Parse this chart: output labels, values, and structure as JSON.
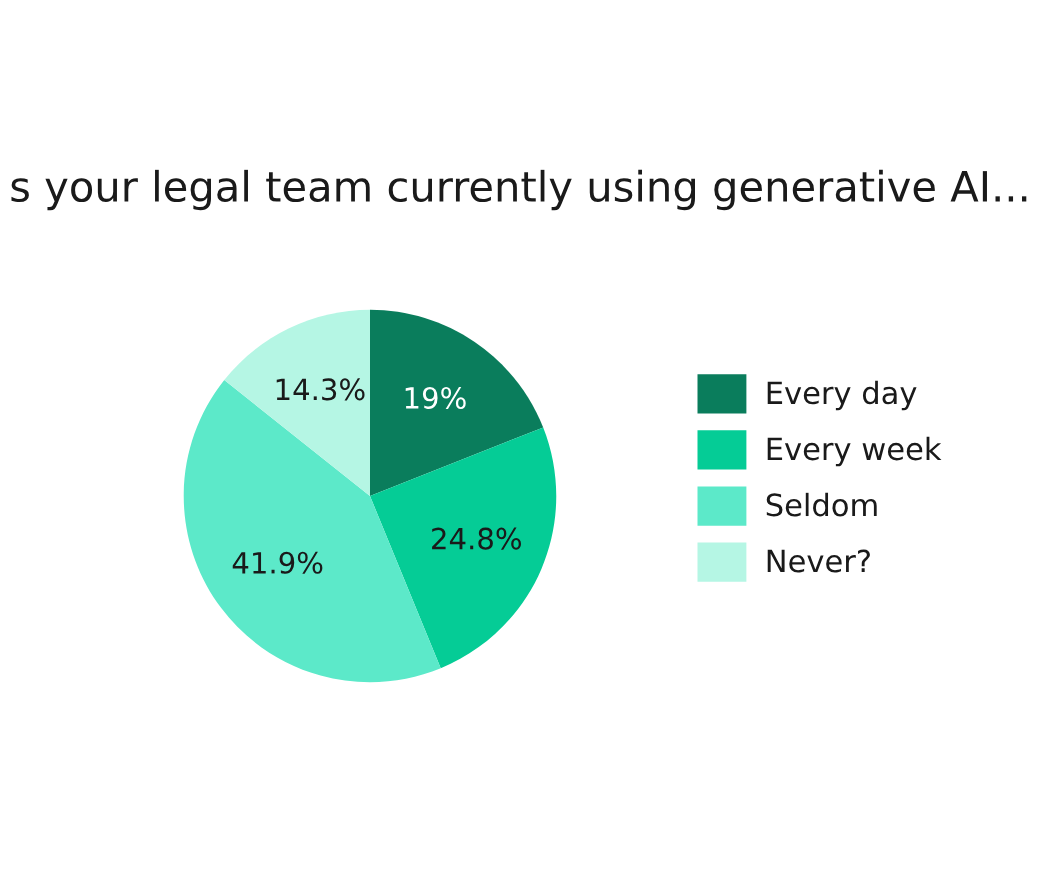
{
  "chart_data": {
    "type": "pie",
    "title": "s your legal team currently using generative AI...",
    "categories": [
      "Every day",
      "Every week",
      "Seldom",
      "Never?"
    ],
    "values": [
      19,
      24.8,
      41.9,
      14.3
    ],
    "colors": [
      "#0a7d5c",
      "#05cc96",
      "#5ce9c9",
      "#b5f6e4"
    ],
    "value_labels": [
      "19%",
      "24.8%",
      "41.9%",
      "14.3%"
    ],
    "legend": "right"
  }
}
